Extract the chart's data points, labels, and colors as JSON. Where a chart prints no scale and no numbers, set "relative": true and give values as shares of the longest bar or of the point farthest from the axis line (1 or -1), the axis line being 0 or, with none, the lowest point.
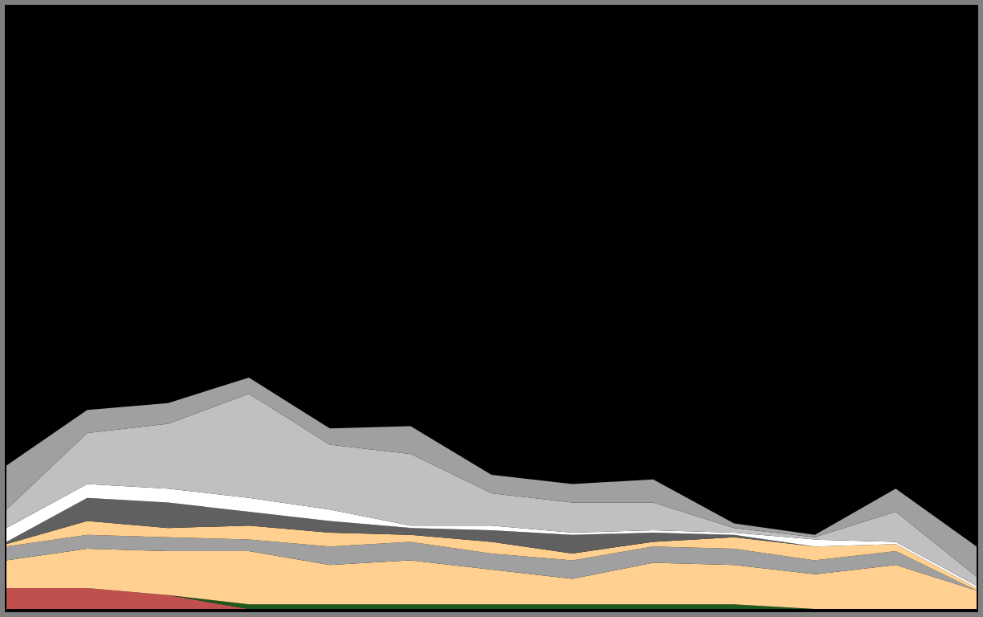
{
  "chart_data": {
    "type": "area",
    "relative": true,
    "stacked": true,
    "grid": false,
    "categories": [
      null,
      null,
      null,
      null,
      null,
      null,
      null,
      null,
      null,
      null,
      null,
      null,
      null
    ],
    "series": [
      {
        "color": "#c0504d",
        "values": [
          0.09,
          0.09,
          0.06,
          0,
          null,
          null,
          null,
          null,
          null,
          null,
          null,
          null,
          null
        ]
      },
      {
        "color": "#1e5a1e",
        "values": [
          null,
          null,
          0,
          0.02,
          0.02,
          0.02,
          0.02,
          0.02,
          0.02,
          0.02,
          0,
          null,
          null
        ]
      },
      {
        "color": "#ffd090",
        "values": [
          0.12,
          0.17,
          0.19,
          0.23,
          0.17,
          0.19,
          0.15,
          0.11,
          0.18,
          0.17,
          0.15,
          0.19,
          0.08
        ]
      },
      {
        "color": "#a0a0a0",
        "values": [
          0.06,
          0.06,
          0.06,
          0.05,
          0.08,
          0.08,
          0.07,
          0.08,
          0.07,
          0.07,
          0.06,
          0.06,
          0
        ]
      },
      {
        "color": "#ffd090",
        "values": [
          0.01,
          0.06,
          0.04,
          0.06,
          0.06,
          0.03,
          0.05,
          0.03,
          0.02,
          0.05,
          0.06,
          0.03,
          0.01
        ]
      },
      {
        "color": "#606060",
        "values": [
          0.01,
          0.1,
          0.11,
          0.06,
          0.05,
          0.03,
          0.05,
          0.08,
          0.04,
          0.01,
          0,
          0,
          0
        ]
      },
      {
        "color": "#ffffff",
        "values": [
          0.06,
          0.06,
          0.06,
          0.06,
          0.05,
          0.01,
          0.02,
          0.01,
          0.01,
          0.01,
          0.03,
          0.01,
          0.01
        ]
      },
      {
        "color": "#c0c0c0",
        "values": [
          0.08,
          0.22,
          0.28,
          0.45,
          0.28,
          0.31,
          0.14,
          0.13,
          0.12,
          0.02,
          0.01,
          0.13,
          0.04
        ]
      },
      {
        "color": "#a0a0a0",
        "values": [
          0.19,
          0.1,
          0.09,
          0.07,
          0.07,
          0.12,
          0.08,
          0.08,
          0.1,
          0.02,
          0.01,
          0.1,
          0.13
        ]
      }
    ]
  }
}
